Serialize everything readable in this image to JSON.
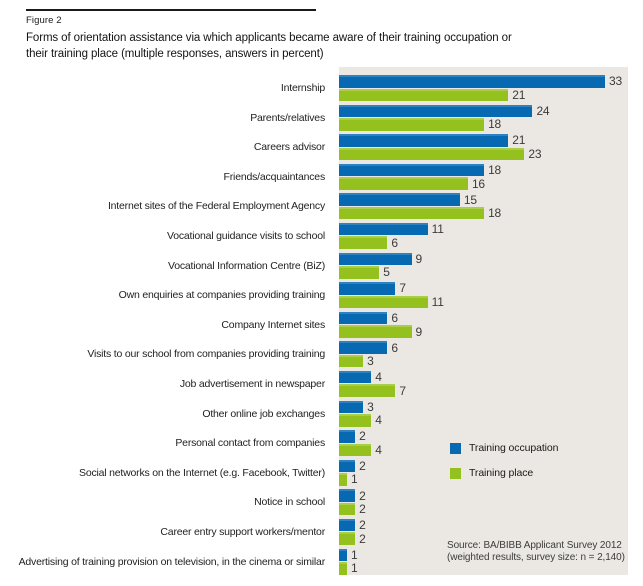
{
  "header": {
    "figure_label": "Figure 2",
    "title_lines": [
      "Forms of orientation assistance via which applicants became aware of their training occupation or",
      "their training place (multiple responses, answers in percent)"
    ]
  },
  "legend": {
    "items": [
      {
        "label": "Training occupation",
        "color": "#0769b2"
      },
      {
        "label": "Training place",
        "color": "#95c11f"
      }
    ]
  },
  "source": {
    "lines": [
      "Source: BA/BIBB Applicant Survey 2012",
      "(weighted results, survey size: n = 2,140)"
    ]
  },
  "chart_data": {
    "type": "bar",
    "orientation": "horizontal",
    "title": "Forms of orientation assistance via which applicants became aware of their training occupation or their training place (multiple responses, answers in percent)",
    "figure_label": "Figure 2",
    "unit": "percent",
    "xlim": [
      0,
      36
    ],
    "grid": false,
    "legend_position": "right-middle",
    "plot_background": "#ebe8e3",
    "value_labels": true,
    "categories": [
      "Internship",
      "Parents/relatives",
      "Careers advisor",
      "Friends/acquaintances",
      "Internet sites of the Federal Employment Agency",
      "Vocational guidance visits to school",
      "Vocational Information Centre (BiZ)",
      "Own enquiries at companies providing training",
      "Company Internet sites",
      "Visits to our school from companies providing training",
      "Job advertisement in newspaper",
      "Other online job exchanges",
      "Personal contact from companies",
      "Social networks on the Internet (e.g. Facebook, Twitter)",
      "Notice in school",
      "Career entry support workers/mentor",
      "Advertising of training provision on television, in the cinema or similar"
    ],
    "series": [
      {
        "name": "Training occupation",
        "color": "#0769b2",
        "values": [
          33,
          24,
          21,
          18,
          15,
          11,
          9,
          7,
          6,
          6,
          4,
          3,
          2,
          2,
          2,
          2,
          1
        ]
      },
      {
        "name": "Training place",
        "color": "#95c11f",
        "values": [
          21,
          18,
          23,
          16,
          18,
          6,
          5,
          11,
          9,
          3,
          7,
          4,
          4,
          1,
          2,
          2,
          1
        ]
      }
    ]
  }
}
